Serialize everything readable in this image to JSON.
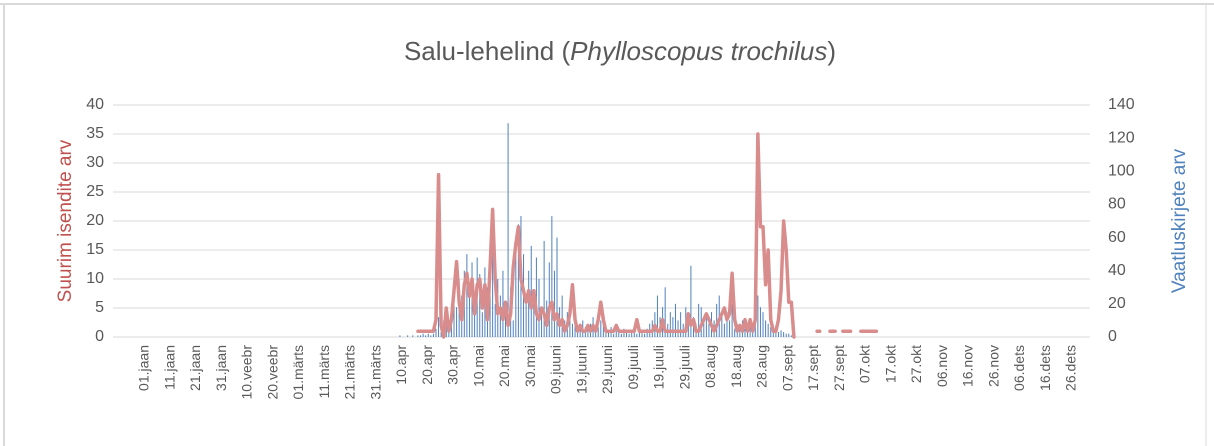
{
  "chart_data": {
    "type": "bar_line",
    "title_parts": [
      "Salu-lehelind (",
      "Phylloscopus trochilus",
      ")"
    ],
    "ylabel": "Suurim isendite arv",
    "y2label": "Vaatluskirjete arv",
    "ylim": [
      0,
      40
    ],
    "yticks": [
      0,
      5,
      10,
      15,
      20,
      25,
      30,
      35,
      40
    ],
    "y2lim": [
      0,
      140
    ],
    "y2ticks": [
      0,
      20,
      40,
      60,
      80,
      100,
      120,
      140
    ],
    "grid": true,
    "categories": [
      "01.jaan",
      null,
      null,
      null,
      null,
      null,
      null,
      null,
      null,
      null,
      "11.jaan",
      null,
      null,
      null,
      null,
      null,
      null,
      null,
      null,
      null,
      "21.jaan",
      null,
      null,
      null,
      null,
      null,
      null,
      null,
      null,
      null,
      "31.jaan",
      null,
      null,
      null,
      null,
      null,
      null,
      null,
      null,
      null,
      "10.veebr",
      null,
      null,
      null,
      null,
      null,
      null,
      null,
      null,
      null,
      "20.veebr",
      null,
      null,
      null,
      null,
      null,
      null,
      null,
      null,
      null,
      "01.märts",
      null,
      null,
      null,
      null,
      null,
      null,
      null,
      null,
      null,
      "11.märts",
      null,
      null,
      null,
      null,
      null,
      null,
      null,
      null,
      null,
      "21.märts",
      null,
      null,
      null,
      null,
      null,
      null,
      null,
      null,
      null,
      "31.märts",
      null,
      null,
      null,
      null,
      null,
      null,
      null,
      null,
      null,
      "10.apr",
      null,
      null,
      null,
      null,
      null,
      null,
      null,
      null,
      null,
      "20.apr",
      null,
      null,
      null,
      null,
      null,
      null,
      null,
      null,
      null,
      "30.apr",
      null,
      null,
      null,
      null,
      null,
      null,
      null,
      null,
      null,
      "10.mai",
      null,
      null,
      null,
      null,
      null,
      null,
      null,
      null,
      null,
      "20.mai",
      null,
      null,
      null,
      null,
      null,
      null,
      null,
      null,
      null,
      "30.mai",
      null,
      null,
      null,
      null,
      null,
      null,
      null,
      null,
      null,
      "09.juuni",
      null,
      null,
      null,
      null,
      null,
      null,
      null,
      null,
      null,
      "19.juuni",
      null,
      null,
      null,
      null,
      null,
      null,
      null,
      null,
      null,
      "29.juuni",
      null,
      null,
      null,
      null,
      null,
      null,
      null,
      null,
      null,
      "09.juuli",
      null,
      null,
      null,
      null,
      null,
      null,
      null,
      null,
      null,
      "19.juuli",
      null,
      null,
      null,
      null,
      null,
      null,
      null,
      null,
      null,
      "29.juuli",
      null,
      null,
      null,
      null,
      null,
      null,
      null,
      null,
      null,
      "08.aug",
      null,
      null,
      null,
      null,
      null,
      null,
      null,
      null,
      null,
      "18.aug",
      null,
      null,
      null,
      null,
      null,
      null,
      null,
      null,
      null,
      "28.aug",
      null,
      null,
      null,
      null,
      null,
      null,
      null,
      null,
      null,
      "07.sept",
      null,
      null,
      null,
      null,
      null,
      null,
      null,
      null,
      null,
      "17.sept",
      null,
      null,
      null,
      null,
      null,
      null,
      null,
      null,
      null,
      "27.sept",
      null,
      null,
      null,
      null,
      null,
      null,
      null,
      null,
      null,
      "07.okt",
      null,
      null,
      null,
      null,
      null,
      null,
      null,
      null,
      null,
      "17.okt",
      null,
      null,
      null,
      null,
      null,
      null,
      null,
      null,
      null,
      "27.okt",
      null,
      null,
      null,
      null,
      null,
      null,
      null,
      null,
      null,
      "06.nov",
      null,
      null,
      null,
      null,
      null,
      null,
      null,
      null,
      null,
      "16.nov",
      null,
      null,
      null,
      null,
      null,
      null,
      null,
      null,
      null,
      "26.nov",
      null,
      null,
      null,
      null,
      null,
      null,
      null,
      null,
      null,
      "06.dets",
      null,
      null,
      null,
      null,
      null,
      null,
      null,
      null,
      null,
      "16.dets",
      null,
      null,
      null,
      null,
      null,
      null,
      null,
      null,
      null,
      "26.dets",
      null,
      null,
      null,
      null,
      null
    ],
    "series": [
      {
        "type": "bar",
        "axis": "y2",
        "color": "#4f81bd",
        "values": [
          0,
          0,
          0,
          0,
          0,
          0,
          0,
          0,
          0,
          0,
          0,
          0,
          0,
          0,
          0,
          0,
          0,
          0,
          0,
          0,
          0,
          0,
          0,
          0,
          0,
          0,
          0,
          0,
          0,
          0,
          0,
          0,
          0,
          0,
          0,
          0,
          0,
          0,
          0,
          0,
          0,
          0,
          0,
          0,
          0,
          0,
          0,
          0,
          0,
          0,
          0,
          0,
          0,
          0,
          0,
          0,
          0,
          0,
          0,
          0,
          0,
          0,
          0,
          0,
          0,
          0,
          0,
          0,
          0,
          0,
          0,
          0,
          0,
          0,
          0,
          0,
          0,
          0,
          0,
          0,
          0,
          0,
          0,
          0,
          0,
          0,
          0,
          0,
          0,
          0,
          0,
          0,
          0,
          0,
          0,
          0,
          0,
          0,
          0,
          1,
          0,
          0,
          1,
          0,
          1,
          0,
          1,
          1,
          2,
          1,
          2,
          1,
          2,
          5,
          12,
          3,
          10,
          14,
          8,
          20,
          30,
          18,
          35,
          25,
          40,
          50,
          30,
          45,
          20,
          48,
          38,
          15,
          42,
          30,
          55,
          60,
          20,
          35,
          25,
          40,
          15,
          129,
          30,
          10,
          60,
          68,
          73,
          50,
          25,
          40,
          55,
          20,
          48,
          35,
          15,
          58,
          22,
          45,
          73,
          40,
          60,
          18,
          25,
          10,
          15,
          20,
          8,
          12,
          5,
          8,
          10,
          6,
          5,
          8,
          12,
          4,
          6,
          10,
          8,
          5,
          3,
          6,
          2,
          4,
          3,
          2,
          5,
          3,
          2,
          4,
          3,
          2,
          4,
          3,
          2,
          5,
          8,
          10,
          15,
          25,
          12,
          18,
          30,
          8,
          15,
          12,
          20,
          10,
          15,
          8,
          18,
          10,
          43,
          12,
          8,
          20,
          18,
          10,
          12,
          8,
          15,
          10,
          20,
          25,
          12,
          8,
          15,
          10,
          20,
          5,
          8,
          6,
          10,
          5,
          8,
          10,
          5,
          12,
          25,
          18,
          15,
          10,
          8,
          6,
          5,
          4,
          3,
          4,
          3,
          2,
          2,
          1,
          1,
          0,
          0,
          0,
          0,
          0,
          0,
          0,
          0,
          0,
          0,
          0,
          0,
          0,
          0,
          0,
          0,
          0,
          0,
          0,
          0,
          0,
          0,
          0,
          0,
          0,
          0,
          0,
          0,
          0,
          0,
          0,
          0,
          0,
          0,
          0,
          0,
          0,
          0,
          0,
          0,
          0,
          0,
          0,
          0,
          0,
          0,
          0,
          0,
          0,
          0,
          0,
          0,
          0,
          0,
          0,
          0,
          0,
          0,
          0,
          0,
          0,
          0,
          0,
          0,
          0,
          0,
          0,
          0,
          0,
          0,
          0,
          0,
          0,
          0,
          0,
          0,
          0,
          0,
          0,
          0,
          0,
          0,
          0,
          0,
          0,
          0,
          0,
          0,
          0,
          0,
          0,
          0,
          0,
          0,
          0,
          0,
          0,
          0,
          0,
          0,
          0,
          0,
          0,
          0,
          0,
          0,
          0,
          0,
          0,
          0,
          0,
          0,
          0
        ]
      },
      {
        "type": "line",
        "axis": "y",
        "color": "#d98c8c",
        "values": [
          null,
          null,
          null,
          null,
          null,
          null,
          null,
          null,
          null,
          null,
          null,
          null,
          null,
          null,
          null,
          null,
          null,
          null,
          null,
          null,
          null,
          null,
          null,
          null,
          null,
          null,
          null,
          null,
          null,
          null,
          null,
          null,
          null,
          null,
          null,
          null,
          null,
          null,
          null,
          null,
          null,
          null,
          null,
          null,
          null,
          null,
          null,
          null,
          null,
          null,
          null,
          null,
          null,
          null,
          null,
          null,
          null,
          null,
          null,
          null,
          null,
          null,
          null,
          null,
          null,
          null,
          null,
          null,
          null,
          null,
          null,
          null,
          null,
          null,
          null,
          null,
          null,
          null,
          null,
          null,
          null,
          null,
          null,
          null,
          null,
          null,
          null,
          null,
          null,
          null,
          null,
          null,
          null,
          null,
          null,
          null,
          null,
          null,
          null,
          null,
          null,
          null,
          null,
          null,
          null,
          null,
          1,
          1,
          1,
          1,
          1,
          1,
          1,
          3,
          28,
          2,
          0,
          5,
          1,
          3,
          8,
          13,
          6,
          3,
          9,
          11,
          7,
          10,
          4,
          9,
          10,
          5,
          9,
          3,
          12,
          22,
          10,
          4,
          5,
          3,
          6,
          2,
          4,
          12,
          16,
          19,
          10,
          8,
          6,
          8,
          5,
          8,
          4,
          3,
          5,
          4,
          2,
          5,
          6,
          3,
          4,
          2,
          3,
          1,
          2,
          4,
          9,
          3,
          1,
          2,
          1,
          1,
          2,
          1,
          2,
          1,
          3,
          6,
          3,
          1,
          1,
          1,
          1,
          2,
          1,
          1,
          1,
          1,
          1,
          1,
          1,
          3,
          1,
          1,
          1,
          1,
          1,
          1,
          2,
          1,
          1,
          3,
          1,
          1,
          1,
          1,
          1,
          1,
          1,
          1,
          1,
          4,
          2,
          3,
          1,
          1,
          2,
          3,
          4,
          3,
          2,
          1,
          2,
          3,
          4,
          5,
          3,
          4,
          11,
          3,
          1,
          2,
          1,
          3,
          1,
          3,
          1,
          3,
          35,
          19,
          19,
          9,
          15,
          3,
          1,
          1,
          3,
          8,
          20,
          15,
          6,
          6,
          0,
          null,
          null,
          null,
          null,
          null,
          null,
          null,
          null,
          1,
          1,
          null,
          null,
          null,
          1,
          1,
          1,
          null,
          null,
          1,
          1,
          1,
          1,
          null,
          null,
          null,
          1,
          1,
          1,
          1,
          1,
          1,
          1,
          null,
          null,
          null,
          null,
          null,
          null,
          null,
          null,
          null,
          null,
          null,
          null,
          null,
          null,
          null,
          null,
          null,
          null,
          null,
          null,
          null,
          null,
          null,
          null,
          null,
          null,
          null,
          null,
          null,
          null,
          null,
          null,
          null,
          null,
          null,
          null,
          null,
          null,
          null,
          null,
          null,
          null,
          null,
          null,
          null,
          null,
          null,
          null,
          null,
          null,
          null,
          null,
          null,
          null,
          null,
          null,
          null,
          null,
          null,
          null,
          null,
          null,
          null,
          null,
          null,
          null,
          null,
          null,
          null,
          null,
          null,
          null,
          null,
          null,
          null,
          null,
          null,
          null,
          null,
          null,
          null
        ]
      }
    ]
  }
}
